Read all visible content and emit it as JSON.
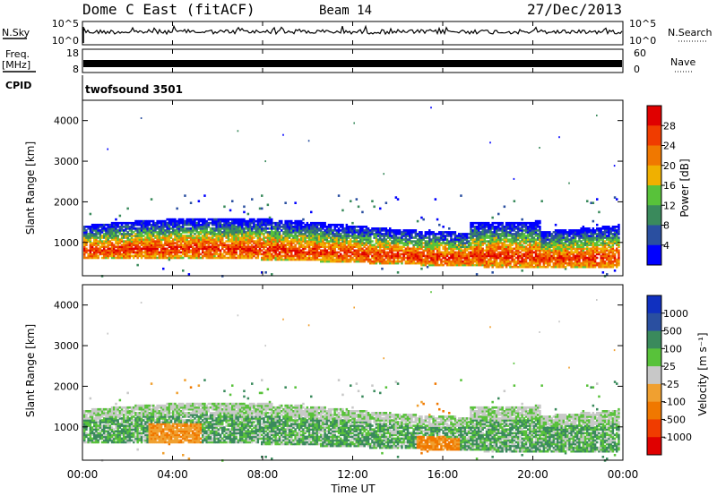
{
  "header": {
    "radar": "Dome C East (fitACF)",
    "beam": "Beam 14",
    "date": "27/Dec/2013"
  },
  "top_panels": {
    "nsky_label": "N.Sky",
    "nsky_ticks": [
      "10^5",
      "10^0"
    ],
    "nsearch_label": "N.Search",
    "nsearch_ticks": [
      "10^5",
      "10^0"
    ],
    "freq_label_1": "Freq.",
    "freq_label_2": "[MHz]",
    "freq_ticks": [
      "18",
      "8"
    ],
    "nave_label": "Nave",
    "nave_ticks": [
      "60",
      "0"
    ],
    "cpid_label": "CPID",
    "cpid_value": "twofsound 3501"
  },
  "colors": {
    "power": [
      "#0000ff",
      "#2a4fa0",
      "#3a8a5c",
      "#58c23a",
      "#f0b000",
      "#f07800",
      "#f03c00",
      "#e00000"
    ],
    "velocity": [
      "#e00000",
      "#f03c00",
      "#f07800",
      "#f0a030",
      "#c8c8c8",
      "#58c23a",
      "#3a8a5c",
      "#2a4fa0",
      "#1030c0"
    ]
  },
  "chart_data": [
    {
      "type": "heatmap",
      "panel": "power",
      "ylabel": "Slant Range [km]",
      "yticks": [
        1000,
        2000,
        3000,
        4000
      ],
      "ylim": [
        180,
        4500
      ],
      "xlim": [
        0,
        24
      ],
      "colorbar_label": "Power [dB]",
      "colorbar_ticks": [
        "28",
        "24",
        "20",
        "16",
        "12",
        "8",
        "4"
      ]
    },
    {
      "type": "heatmap",
      "panel": "velocity",
      "ylabel": "Slant Range [km]",
      "yticks": [
        1000,
        2000,
        3000,
        4000
      ],
      "ylim": [
        180,
        4500
      ],
      "xlim": [
        0,
        24
      ],
      "colorbar_label": "Velocity [m s⁻¹]",
      "colorbar_ticks": [
        "1000",
        "500",
        "100",
        "25",
        "-25",
        "-100",
        "-500",
        "-1000"
      ]
    }
  ],
  "xaxis": {
    "label": "Time UT",
    "ticks": [
      "00:00",
      "04:00",
      "08:00",
      "12:00",
      "16:00",
      "20:00",
      "00:00"
    ]
  }
}
